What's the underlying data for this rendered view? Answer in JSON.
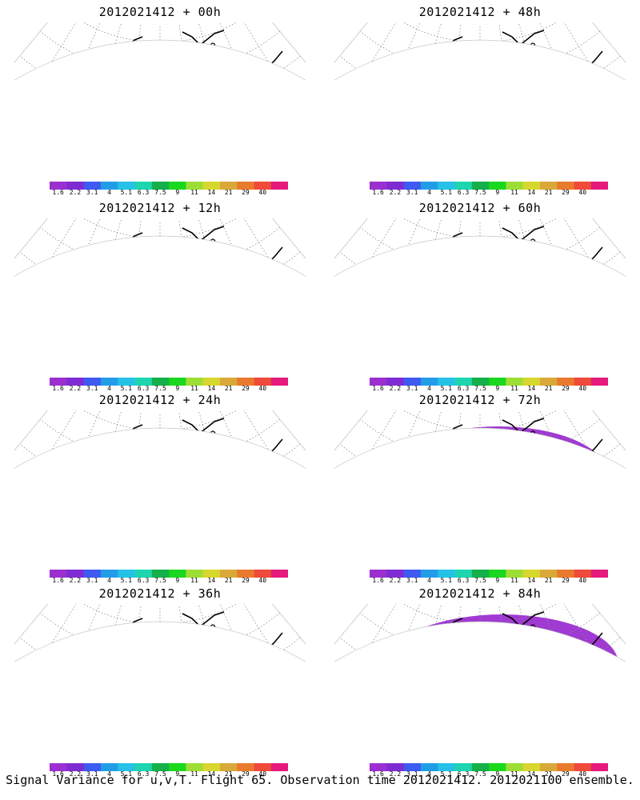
{
  "footer": "Signal Variance for u,v,T. Flight 65. Observation time 2012021412. 2012021100 ensemble.",
  "colorbar": {
    "labels": [
      "1.6",
      "2.2",
      "3.1",
      "4",
      "5.1",
      "6.3",
      "7.5",
      "9",
      "11",
      "14",
      "21",
      "29",
      "40"
    ],
    "colors": [
      "#9b2fd0",
      "#7f2bd3",
      "#3e5af0",
      "#219de8",
      "#26c1e6",
      "#1ed5b0",
      "#16b04a",
      "#19d81d",
      "#9dde35",
      "#d7d72f",
      "#d9a838",
      "#ea7a2d",
      "#ef4a3a",
      "#e6197c"
    ]
  },
  "map": {
    "land": "#ffffff",
    "coast": "#000000",
    "grid": "#8a8a8a"
  },
  "panels": [
    {
      "title": "2012021412 + 00h",
      "level": 0
    },
    {
      "title": "2012021412 + 48h",
      "level": 4
    },
    {
      "title": "2012021412 + 12h",
      "level": 1
    },
    {
      "title": "2012021412 + 60h",
      "level": 5
    },
    {
      "title": "2012021412 + 24h",
      "level": 2
    },
    {
      "title": "2012021412 + 72h",
      "level": 6
    },
    {
      "title": "2012021412 + 36h",
      "level": 3
    },
    {
      "title": "2012021412 + 84h",
      "level": 7
    }
  ]
}
